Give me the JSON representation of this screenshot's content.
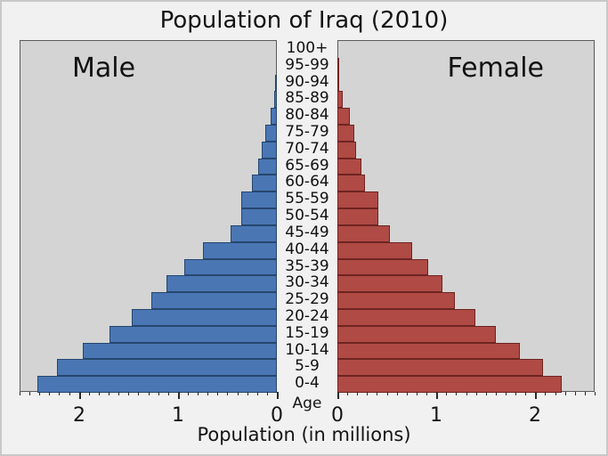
{
  "chart_data": {
    "type": "bar",
    "subtype": "population-pyramid",
    "title": "Population of Iraq (2010)",
    "xlabel": "Population (in millions)",
    "age_axis_label": "Age",
    "left_label": "Male",
    "right_label": "Female",
    "categories_top_to_bottom": [
      "100+",
      "95-99",
      "90-94",
      "85-89",
      "80-84",
      "75-79",
      "70-74",
      "65-69",
      "60-64",
      "55-59",
      "50-54",
      "45-49",
      "40-44",
      "35-39",
      "30-34",
      "25-29",
      "20-24",
      "15-19",
      "10-14",
      "5-9",
      "0-4"
    ],
    "series": [
      {
        "name": "Male",
        "side": "left",
        "values": [
          0.001,
          0.004,
          0.01,
          0.03,
          0.065,
          0.12,
          0.155,
          0.185,
          0.25,
          0.36,
          0.36,
          0.47,
          0.75,
          0.94,
          1.12,
          1.27,
          1.47,
          1.69,
          1.96,
          2.22,
          2.42
        ]
      },
      {
        "name": "Female",
        "side": "right",
        "values": [
          0.002,
          0.006,
          0.02,
          0.05,
          0.125,
          0.17,
          0.19,
          0.24,
          0.28,
          0.41,
          0.41,
          0.53,
          0.76,
          0.92,
          1.06,
          1.19,
          1.39,
          1.6,
          1.84,
          2.08,
          2.27
        ]
      }
    ],
    "x_max": 2.6,
    "x_major_ticks": [
      0,
      1,
      2
    ],
    "x_minor_step": 0.1,
    "x_minor_max": 2.6,
    "grid": false,
    "legend": "none"
  },
  "colors": {
    "male_bar": "#4a76b4",
    "male_bar_edge": "#26466e",
    "female_bar": "#af4a45",
    "female_bar_edge": "#6e2421",
    "panel_bg": "#d4d4d4",
    "panel_border": "#5a5a5a",
    "figure_bg": "#f1f1f1",
    "figure_border": "#c8c8c8",
    "text": "#141414",
    "tick": "#2a2a2a"
  }
}
